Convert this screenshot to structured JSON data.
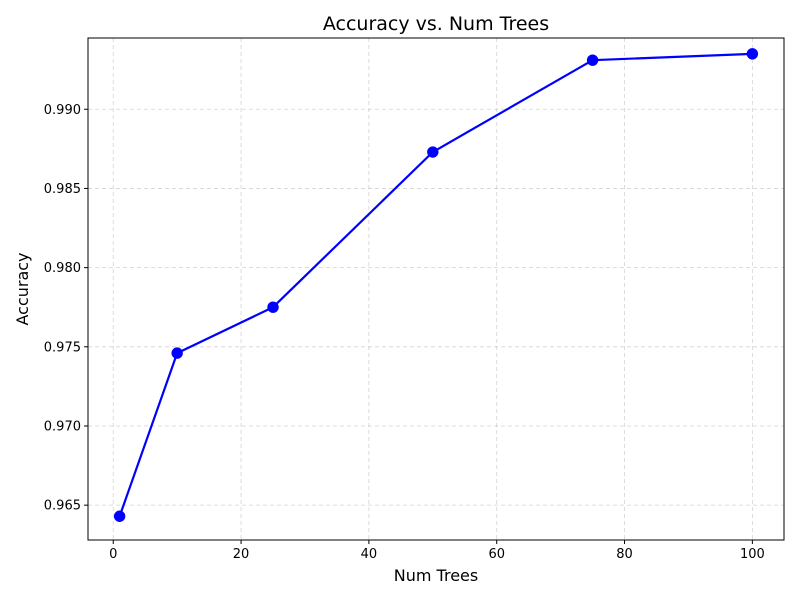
{
  "chart_data": {
    "type": "line",
    "title": "Accuracy vs. Num Trees",
    "xlabel": "Num Trees",
    "ylabel": "Accuracy",
    "xlim": [
      -3.95,
      104.95
    ],
    "ylim": [
      0.9628,
      0.9945
    ],
    "xticks": [
      0,
      20,
      40,
      60,
      80,
      100
    ],
    "xtick_labels": [
      "0",
      "20",
      "40",
      "60",
      "80",
      "100"
    ],
    "yticks": [
      0.965,
      0.97,
      0.975,
      0.98,
      0.985,
      0.99
    ],
    "ytick_labels": [
      "0.965",
      "0.970",
      "0.975",
      "0.980",
      "0.985",
      "0.990"
    ],
    "grid": true,
    "series": [
      {
        "x": [
          1,
          10,
          25,
          50,
          75,
          100
        ],
        "y": [
          0.9643,
          0.9746,
          0.9775,
          0.9873,
          0.9931,
          0.9935
        ],
        "color": "#0000ff",
        "marker": "circle"
      }
    ]
  }
}
